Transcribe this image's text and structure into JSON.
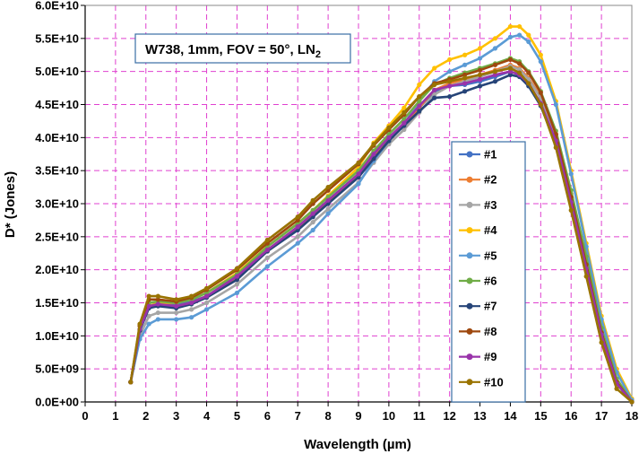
{
  "chart_data": {
    "type": "line",
    "title": "",
    "annotation": {
      "main": "W738, 1mm, FOV = 50°, LN",
      "subscript": "2"
    },
    "xlabel": "Wavelength (µm)",
    "ylabel": "D* (Jones)",
    "xlim": [
      0,
      18
    ],
    "ylim": [
      0,
      60000000000.0
    ],
    "x_ticks": [
      0,
      1,
      2,
      3,
      4,
      5,
      6,
      7,
      8,
      9,
      10,
      11,
      12,
      13,
      14,
      15,
      16,
      17,
      18
    ],
    "x_tick_labels": [
      "0",
      "1",
      "2",
      "3",
      "4",
      "5",
      "6",
      "7",
      "8",
      "9",
      "10",
      "11",
      "12",
      "13",
      "14",
      "15",
      "16",
      "17",
      "18"
    ],
    "y_ticks": [
      0,
      5000000000.0,
      10000000000.0,
      15000000000.0,
      20000000000.0,
      25000000000.0,
      30000000000.0,
      35000000000.0,
      40000000000.0,
      45000000000.0,
      50000000000.0,
      55000000000.0,
      60000000000.0
    ],
    "y_tick_labels": [
      "0.0E+00",
      "5.0E+09",
      "1.0E+10",
      "1.5E+10",
      "2.0E+10",
      "2.5E+10",
      "3.0E+10",
      "3.5E+10",
      "4.0E+10",
      "4.5E+10",
      "5.0E+10",
      "5.5E+10",
      "6.0E+10"
    ],
    "grid": true,
    "grid_color": "#e040d0",
    "legend_position": "center-right",
    "x": [
      1.5,
      1.8,
      2.1,
      2.4,
      3.0,
      3.5,
      4.0,
      5.0,
      6.0,
      7.0,
      7.5,
      8.0,
      9.0,
      9.5,
      10.0,
      10.5,
      11.0,
      11.5,
      12.0,
      12.5,
      13.0,
      13.5,
      14.0,
      14.3,
      14.6,
      15.0,
      15.5,
      16.0,
      16.5,
      17.0,
      17.5,
      18.0
    ],
    "series": [
      {
        "name": "#1",
        "color": "#4472c4",
        "values": [
          3000000000.0,
          11000000000.0,
          14500000000.0,
          15000000000.0,
          14800000000.0,
          15200000000.0,
          16000000000.0,
          19000000000.0,
          23000000000.0,
          26500000000.0,
          28500000000.0,
          30500000000.0,
          34500000000.0,
          37500000000.0,
          40000000000.0,
          42000000000.0,
          44500000000.0,
          47000000000.0,
          47800000000.0,
          48000000000.0,
          48500000000.0,
          49200000000.0,
          50000000000.0,
          49500000000.0,
          48000000000.0,
          45000000000.0,
          39500000000.0,
          30500000000.0,
          20500000000.0,
          10500000000.0,
          3000000000.0,
          0.0
        ]
      },
      {
        "name": "#2",
        "color": "#ed7d31",
        "values": [
          3000000000.0,
          11000000000.0,
          14500000000.0,
          14800000000.0,
          14500000000.0,
          15000000000.0,
          16000000000.0,
          18800000000.0,
          22800000000.0,
          26200000000.0,
          28200000000.0,
          30200000000.0,
          34200000000.0,
          37200000000.0,
          39800000000.0,
          42000000000.0,
          44500000000.0,
          47200000000.0,
          48200000000.0,
          48800000000.0,
          49500000000.0,
          50200000000.0,
          51000000000.0,
          50500000000.0,
          49000000000.0,
          46200000000.0,
          40500000000.0,
          31500000000.0,
          21500000000.0,
          11000000000.0,
          3500000000.0,
          0.0
        ]
      },
      {
        "name": "#3",
        "color": "#a5a5a5",
        "values": [
          3000000000.0,
          10000000000.0,
          13000000000.0,
          13500000000.0,
          13500000000.0,
          14000000000.0,
          15000000000.0,
          17800000000.0,
          21800000000.0,
          25000000000.0,
          27200000000.0,
          29200000000.0,
          33200000000.0,
          36200000000.0,
          39000000000.0,
          41200000000.0,
          43800000000.0,
          46500000000.0,
          47800000000.0,
          48500000000.0,
          49200000000.0,
          50000000000.0,
          50800000000.0,
          50300000000.0,
          48800000000.0,
          46000000000.0,
          40200000000.0,
          31000000000.0,
          21000000000.0,
          10800000000.0,
          3200000000.0,
          0.0
        ]
      },
      {
        "name": "#4",
        "color": "#ffc000",
        "values": [
          3000000000.0,
          11000000000.0,
          14500000000.0,
          15000000000.0,
          15000000000.0,
          15500000000.0,
          16500000000.0,
          19500000000.0,
          23500000000.0,
          27000000000.0,
          29000000000.0,
          31200000000.0,
          35500000000.0,
          39200000000.0,
          41800000000.0,
          44500000000.0,
          48000000000.0,
          50500000000.0,
          51800000000.0,
          52500000000.0,
          53500000000.0,
          55000000000.0,
          56800000000.0,
          56800000000.0,
          55500000000.0,
          52500000000.0,
          45500000000.0,
          35000000000.0,
          24000000000.0,
          13000000000.0,
          5000000000.0,
          500000000.0
        ]
      },
      {
        "name": "#5",
        "color": "#5b9bd5",
        "values": [
          3000000000.0,
          9500000000.0,
          11800000000.0,
          12500000000.0,
          12500000000.0,
          12800000000.0,
          14000000000.0,
          16500000000.0,
          20500000000.0,
          24000000000.0,
          26000000000.0,
          28500000000.0,
          33000000000.0,
          36500000000.0,
          39500000000.0,
          42000000000.0,
          45500000000.0,
          48500000000.0,
          50000000000.0,
          51000000000.0,
          52000000000.0,
          53500000000.0,
          55200000000.0,
          55500000000.0,
          54500000000.0,
          51500000000.0,
          45000000000.0,
          34500000000.0,
          23500000000.0,
          12500000000.0,
          4500000000.0,
          300000000.0
        ]
      },
      {
        "name": "#6",
        "color": "#70ad47",
        "values": [
          3000000000.0,
          11000000000.0,
          15000000000.0,
          15200000000.0,
          15000000000.0,
          15500000000.0,
          16500000000.0,
          19300000000.0,
          23500000000.0,
          27000000000.0,
          29000000000.0,
          31000000000.0,
          35000000000.0,
          38000000000.0,
          40500000000.0,
          42800000000.0,
          45500000000.0,
          48000000000.0,
          49000000000.0,
          49800000000.0,
          50500000000.0,
          51200000000.0,
          52000000000.0,
          51500000000.0,
          50000000000.0,
          47000000000.0,
          41000000000.0,
          32000000000.0,
          22000000000.0,
          11200000000.0,
          3500000000.0,
          0.0
        ]
      },
      {
        "name": "#7",
        "color": "#264478",
        "values": [
          3000000000.0,
          10800000000.0,
          14200000000.0,
          14500000000.0,
          14200000000.0,
          14800000000.0,
          15800000000.0,
          18500000000.0,
          22800000000.0,
          26000000000.0,
          28000000000.0,
          30000000000.0,
          34000000000.0,
          36800000000.0,
          39500000000.0,
          41800000000.0,
          44000000000.0,
          46000000000.0,
          46200000000.0,
          47000000000.0,
          47800000000.0,
          48500000000.0,
          49500000000.0,
          49200000000.0,
          47800000000.0,
          44800000000.0,
          39000000000.0,
          30000000000.0,
          20000000000.0,
          10000000000.0,
          2800000000.0,
          0.0
        ]
      },
      {
        "name": "#8",
        "color": "#9e480e",
        "values": [
          3000000000.0,
          11500000000.0,
          15500000000.0,
          15500000000.0,
          15200000000.0,
          15800000000.0,
          17000000000.0,
          20000000000.0,
          24000000000.0,
          27500000000.0,
          30000000000.0,
          32000000000.0,
          36000000000.0,
          38800000000.0,
          41200000000.0,
          43500000000.0,
          46200000000.0,
          48200000000.0,
          48800000000.0,
          49500000000.0,
          50200000000.0,
          51000000000.0,
          51800000000.0,
          51200000000.0,
          49800000000.0,
          46800000000.0,
          40500000000.0,
          31000000000.0,
          20800000000.0,
          10500000000.0,
          3000000000.0,
          0.0
        ]
      },
      {
        "name": "#9",
        "color": "#9933aa",
        "values": [
          3000000000.0,
          11000000000.0,
          14500000000.0,
          14800000000.0,
          14500000000.0,
          15000000000.0,
          16000000000.0,
          19000000000.0,
          23000000000.0,
          26500000000.0,
          28500000000.0,
          30500000000.0,
          34500000000.0,
          37500000000.0,
          40000000000.0,
          42200000000.0,
          44800000000.0,
          47200000000.0,
          47800000000.0,
          48200000000.0,
          48800000000.0,
          49500000000.0,
          50000000000.0,
          49500000000.0,
          48200000000.0,
          45200000000.0,
          39500000000.0,
          30200000000.0,
          20200000000.0,
          10200000000.0,
          2800000000.0,
          0.0
        ]
      },
      {
        "name": "#10",
        "color": "#997300",
        "values": [
          3000000000.0,
          11800000000.0,
          16000000000.0,
          16000000000.0,
          15500000000.0,
          16000000000.0,
          17200000000.0,
          20200000000.0,
          24500000000.0,
          28000000000.0,
          30500000000.0,
          32500000000.0,
          36200000000.0,
          39000000000.0,
          41500000000.0,
          43800000000.0,
          46200000000.0,
          48000000000.0,
          48500000000.0,
          49000000000.0,
          49500000000.0,
          50000000000.0,
          50500000000.0,
          49800000000.0,
          48200000000.0,
          45000000000.0,
          38500000000.0,
          29000000000.0,
          19000000000.0,
          9000000000.0,
          2000000000.0,
          0.0
        ]
      }
    ]
  }
}
